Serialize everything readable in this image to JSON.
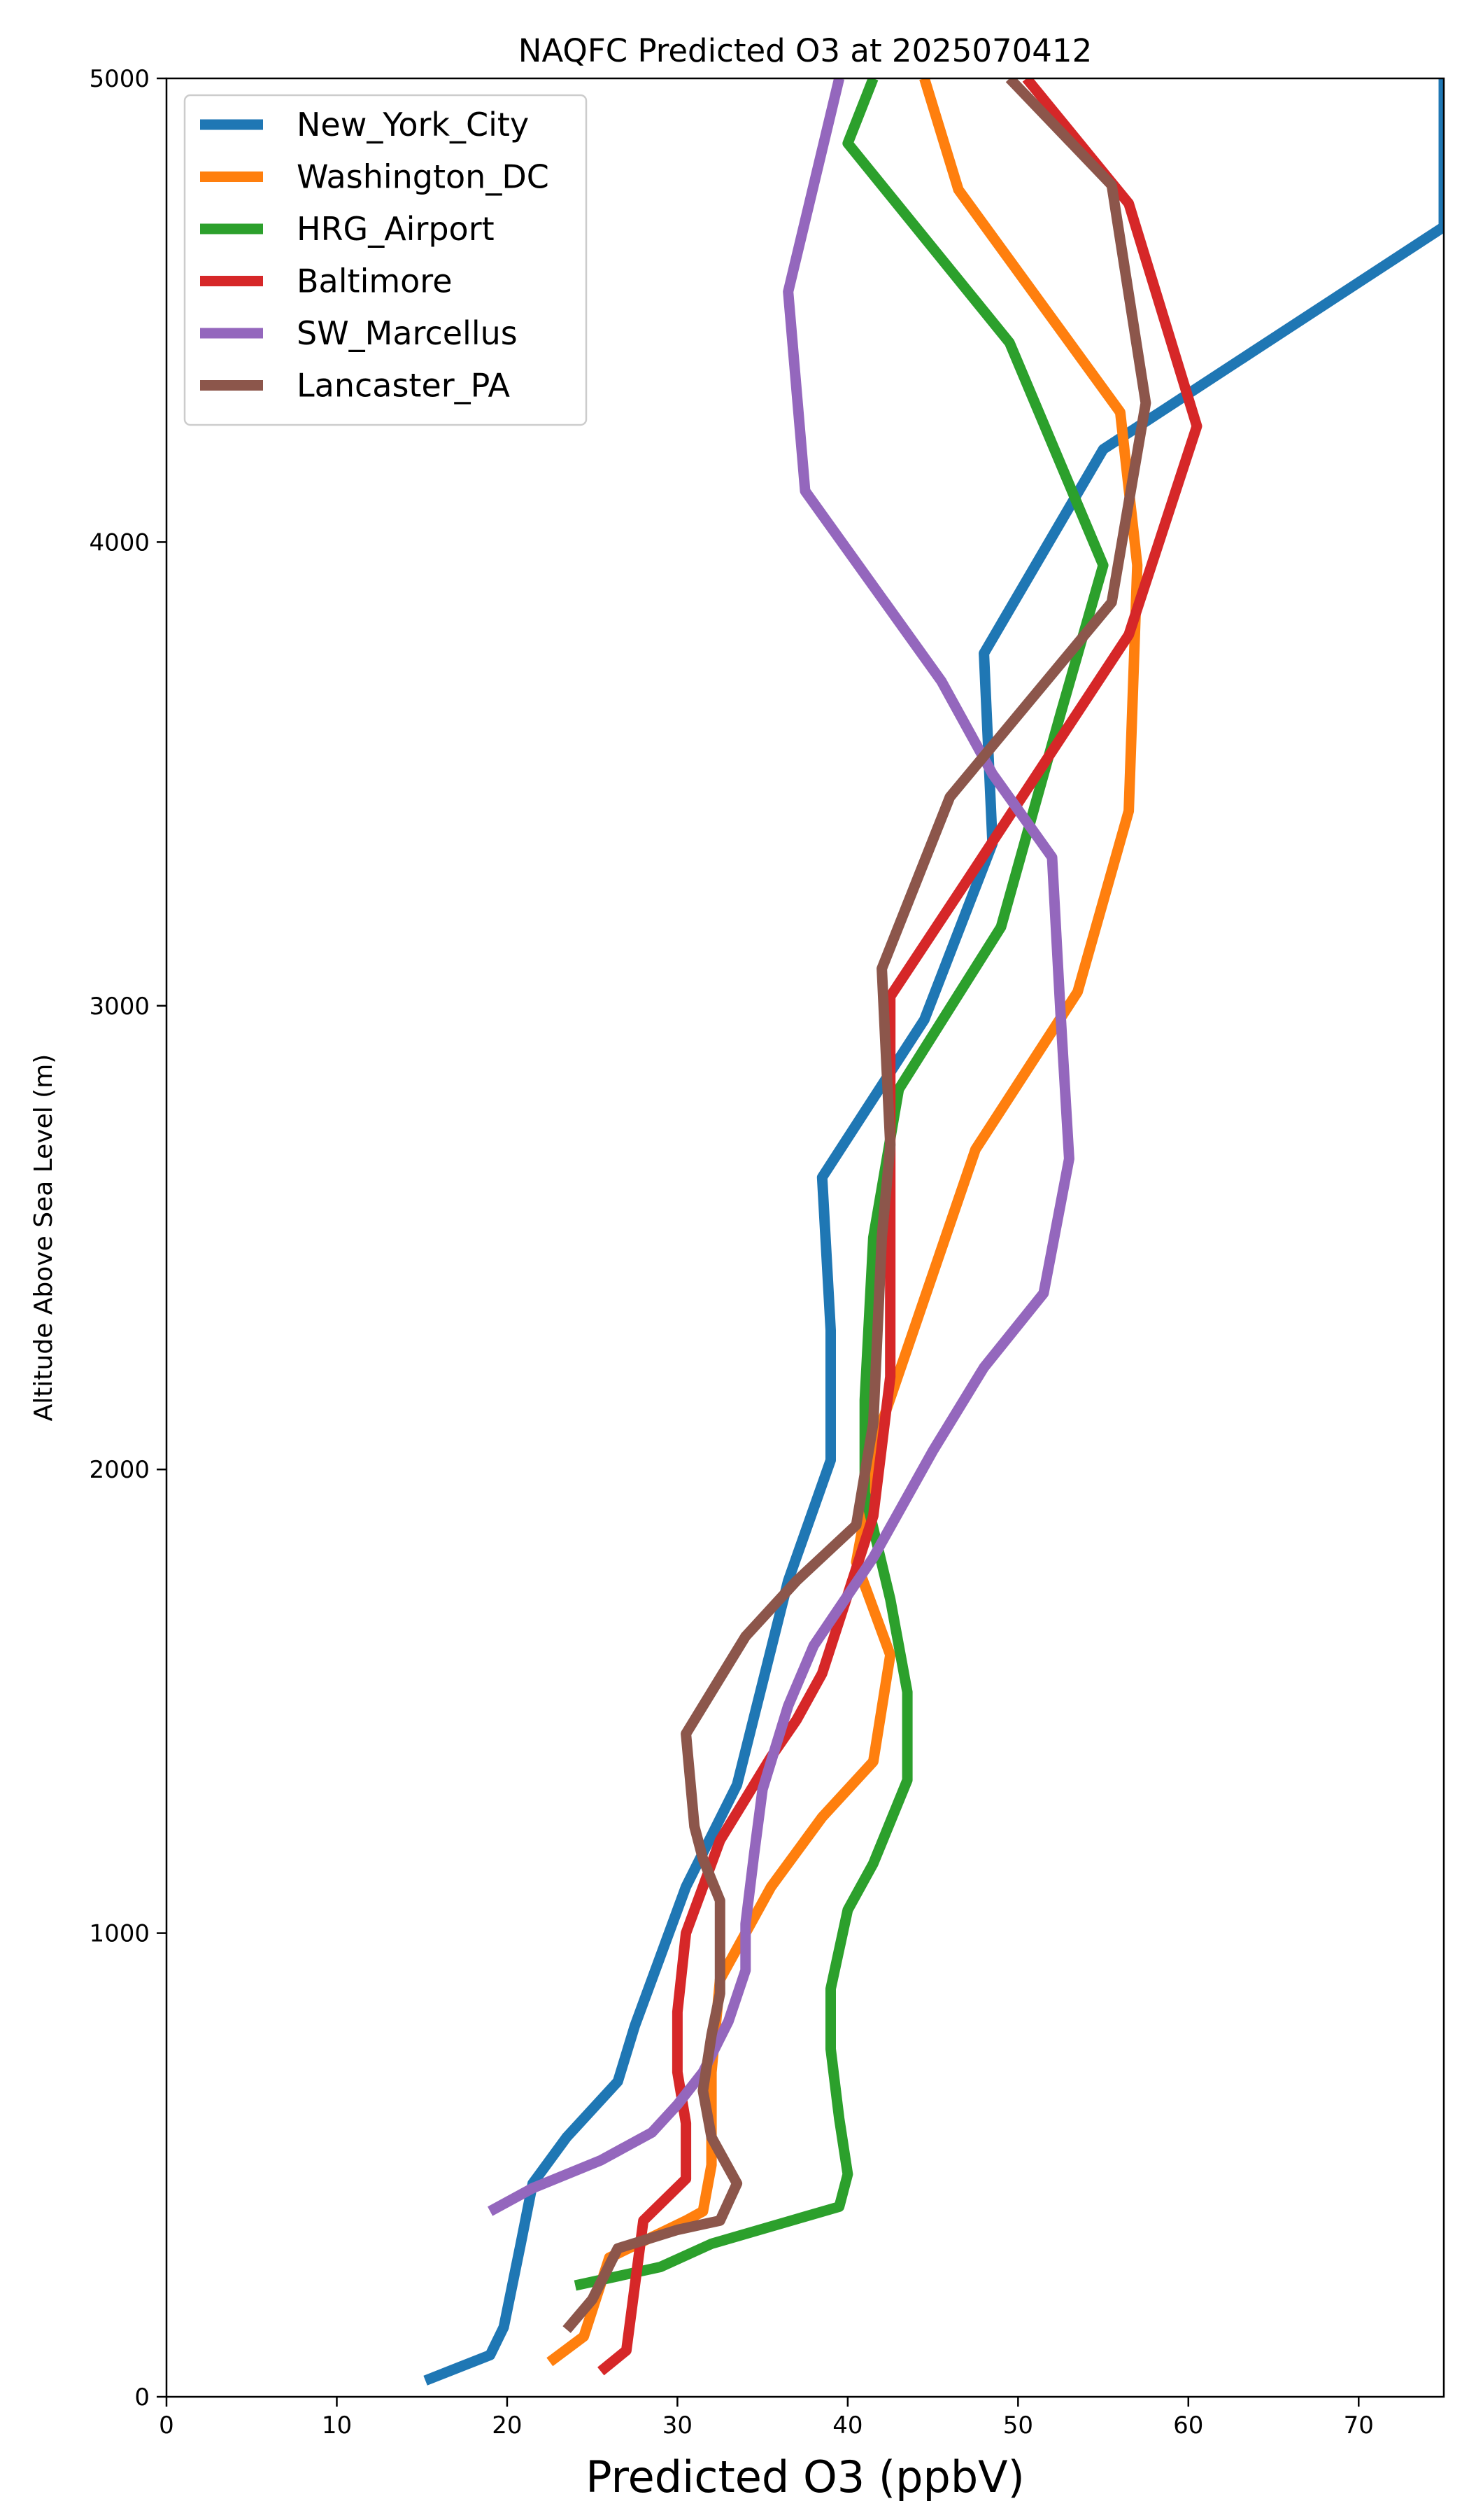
{
  "chart_data": {
    "type": "line",
    "title": "NAQFC Predicted O3 at 2025070412",
    "xlabel": "Predicted O3 (ppbV)",
    "ylabel": "Altitude Above Sea Level (m)",
    "xlim": [
      0,
      75
    ],
    "ylim": [
      0,
      5000
    ],
    "xticks": [
      "0",
      "10",
      "20",
      "30",
      "40",
      "50",
      "60",
      "70"
    ],
    "yticks": [
      "0",
      "1000",
      "2000",
      "3000",
      "4000",
      "5000"
    ],
    "legend_position": "top-left",
    "grid": false,
    "series": [
      {
        "name": "New_York_City",
        "color": "#1f77b4",
        "points": [
          [
            15.2,
            35
          ],
          [
            19.0,
            90
          ],
          [
            19.8,
            150
          ],
          [
            20.8,
            330
          ],
          [
            21.5,
            460
          ],
          [
            23.5,
            560
          ],
          [
            26.5,
            680
          ],
          [
            27.5,
            800
          ],
          [
            30.5,
            1100
          ],
          [
            33.5,
            1320
          ],
          [
            36.5,
            1760
          ],
          [
            39.0,
            2020
          ],
          [
            39.0,
            2300
          ],
          [
            38.5,
            2630
          ],
          [
            44.5,
            2970
          ],
          [
            48.5,
            3350
          ],
          [
            48.0,
            3760
          ],
          [
            55.0,
            4200
          ],
          [
            75.0,
            4680
          ],
          [
            75.0,
            5000
          ]
        ]
      },
      {
        "name": "Washington_DC",
        "color": "#ff7f0e",
        "points": [
          [
            22.5,
            75
          ],
          [
            24.5,
            130
          ],
          [
            26.0,
            300
          ],
          [
            30.5,
            380
          ],
          [
            31.5,
            400
          ],
          [
            32.0,
            500
          ],
          [
            32.0,
            700
          ],
          [
            32.5,
            900
          ],
          [
            35.5,
            1100
          ],
          [
            38.5,
            1250
          ],
          [
            41.5,
            1370
          ],
          [
            42.5,
            1600
          ],
          [
            40.5,
            1800
          ],
          [
            42.0,
            2100
          ],
          [
            47.5,
            2690
          ],
          [
            53.5,
            3030
          ],
          [
            56.5,
            3420
          ],
          [
            57.0,
            3950
          ],
          [
            56.0,
            4280
          ],
          [
            46.5,
            4760
          ],
          [
            44.5,
            5000
          ]
        ]
      },
      {
        "name": "HRG_Airport",
        "color": "#2ca02c",
        "points": [
          [
            24.0,
            240
          ],
          [
            29.0,
            280
          ],
          [
            32.0,
            330
          ],
          [
            39.5,
            410
          ],
          [
            40.0,
            480
          ],
          [
            39.5,
            600
          ],
          [
            39.0,
            750
          ],
          [
            39.0,
            880
          ],
          [
            40.0,
            1050
          ],
          [
            41.5,
            1150
          ],
          [
            43.5,
            1330
          ],
          [
            43.5,
            1520
          ],
          [
            42.5,
            1720
          ],
          [
            41.0,
            1950
          ],
          [
            41.0,
            2150
          ],
          [
            41.5,
            2500
          ],
          [
            43.0,
            2820
          ],
          [
            49.0,
            3170
          ],
          [
            52.5,
            3630
          ],
          [
            55.0,
            3950
          ],
          [
            49.5,
            4430
          ],
          [
            40.0,
            4860
          ],
          [
            41.5,
            5000
          ]
        ]
      },
      {
        "name": "Baltimore",
        "color": "#d62728",
        "points": [
          [
            25.5,
            55
          ],
          [
            27.0,
            100
          ],
          [
            28.0,
            380
          ],
          [
            30.5,
            470
          ],
          [
            30.5,
            590
          ],
          [
            30.0,
            700
          ],
          [
            30.0,
            830
          ],
          [
            30.5,
            1000
          ],
          [
            32.5,
            1200
          ],
          [
            35.5,
            1380
          ],
          [
            37.0,
            1460
          ],
          [
            38.5,
            1560
          ],
          [
            41.5,
            1900
          ],
          [
            42.0,
            2050
          ],
          [
            42.5,
            2200
          ],
          [
            42.5,
            2600
          ],
          [
            42.5,
            3020
          ],
          [
            47.0,
            3270
          ],
          [
            56.5,
            3800
          ],
          [
            60.5,
            4250
          ],
          [
            56.5,
            4730
          ],
          [
            50.5,
            5000
          ]
        ]
      },
      {
        "name": "SW_Marcellus",
        "color": "#9467bd",
        "points": [
          [
            19.0,
            400
          ],
          [
            21.5,
            450
          ],
          [
            25.5,
            510
          ],
          [
            28.5,
            570
          ],
          [
            30.0,
            630
          ],
          [
            31.5,
            700
          ],
          [
            33.0,
            810
          ],
          [
            34.0,
            920
          ],
          [
            34.0,
            1020
          ],
          [
            34.5,
            1170
          ],
          [
            35.0,
            1310
          ],
          [
            36.5,
            1490
          ],
          [
            38.0,
            1620
          ],
          [
            41.5,
            1810
          ],
          [
            45.0,
            2040
          ],
          [
            48.0,
            2220
          ],
          [
            51.5,
            2380
          ],
          [
            53.0,
            2670
          ],
          [
            52.5,
            2980
          ],
          [
            52.0,
            3320
          ],
          [
            48.5,
            3500
          ],
          [
            45.5,
            3700
          ],
          [
            37.5,
            4110
          ],
          [
            36.5,
            4540
          ],
          [
            39.5,
            5000
          ]
        ]
      },
      {
        "name": "Lancaster_PA",
        "color": "#8c564b",
        "points": [
          [
            23.5,
            145
          ],
          [
            25.0,
            210
          ],
          [
            26.5,
            320
          ],
          [
            30.0,
            360
          ],
          [
            32.5,
            380
          ],
          [
            33.5,
            460
          ],
          [
            32.0,
            560
          ],
          [
            31.5,
            660
          ],
          [
            32.0,
            780
          ],
          [
            32.5,
            870
          ],
          [
            32.5,
            1070
          ],
          [
            31.5,
            1160
          ],
          [
            31.0,
            1230
          ],
          [
            30.5,
            1430
          ],
          [
            34.0,
            1640
          ],
          [
            37.0,
            1760
          ],
          [
            40.5,
            1880
          ],
          [
            41.5,
            2100
          ],
          [
            42.0,
            2500
          ],
          [
            42.5,
            2700
          ],
          [
            42.0,
            3080
          ],
          [
            46.0,
            3450
          ],
          [
            55.5,
            3870
          ],
          [
            57.5,
            4300
          ],
          [
            55.5,
            4770
          ],
          [
            49.5,
            5000
          ]
        ]
      }
    ]
  }
}
